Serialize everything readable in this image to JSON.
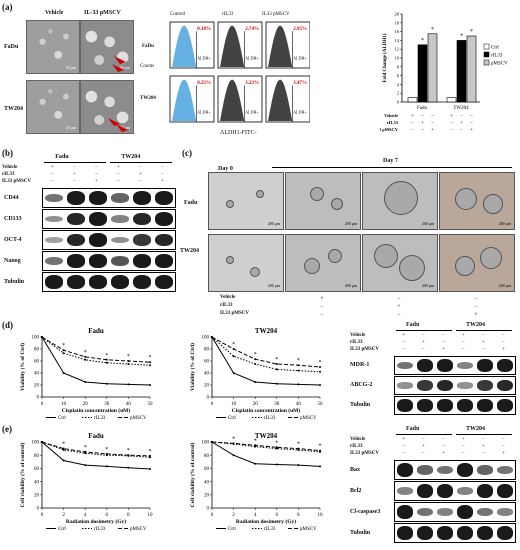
{
  "panel_a": {
    "label": "(a)",
    "micro_cols": [
      "Vehicle",
      "IL-33 pMSCV"
    ],
    "micro_rows": [
      "FaDu",
      "TW204"
    ],
    "scale": "50 μm",
    "flow_cols": [
      "Control",
      "rIL33",
      "IL33 pMSCV"
    ],
    "flow_rows": [
      "FaDu",
      "TW204"
    ],
    "flow_pct": [
      [
        "0.18%",
        "2.74%",
        "2.95%"
      ],
      [
        "0.25%",
        "3.23%",
        "3.47%"
      ]
    ],
    "flow_ylabel": "Counts",
    "flow_xlabel": "ALDH1-FITC-",
    "flow_gate": "ALDH+"
  },
  "panel_b": {
    "label": "(b)",
    "groups": [
      "Fadu",
      "TW204"
    ],
    "conditions": [
      "Vehicle",
      "rIL33",
      "IL33 pMSCV"
    ],
    "proteins": [
      "CD44",
      "CD133",
      "OCT-4",
      "Nanog",
      "Tubulin"
    ]
  },
  "panel_c": {
    "label": "(c)",
    "day0": "Day 0",
    "day7": "Day 7",
    "rows": [
      "Fadu",
      "TW204"
    ],
    "scale": "200 μm",
    "conditions": [
      "Vehicle",
      "rIL33",
      "IL33 pMSCV"
    ]
  },
  "panel_d": {
    "label": "(d)",
    "blot_groups": [
      "Fadu",
      "TW204"
    ],
    "blot_conditions": [
      "Vehicle",
      "rIL33",
      "IL33 pMSCV"
    ],
    "blot_proteins": [
      "MDR-1",
      "ABCG-2",
      "Tubulin"
    ]
  },
  "panel_e": {
    "label": "(e)",
    "blot_groups": [
      "Fadu",
      "TW204"
    ],
    "blot_conditions": [
      "Vehicle",
      "rIL33",
      "IL33 pMSCV"
    ],
    "blot_proteins": [
      "Bax",
      "Bcl2",
      "Cl-caspase3",
      "Tubulin"
    ]
  },
  "signs": {
    "plus": "+",
    "minus": "−"
  },
  "chart_data": [
    {
      "type": "bar",
      "title": "",
      "ylabel": "Fold Change (ALDH1)",
      "categories": [
        "Fadu",
        "TW204"
      ],
      "ylim": [
        0,
        20
      ],
      "yticks": [
        0,
        2,
        4,
        6,
        8,
        10,
        12,
        14,
        16,
        18,
        20
      ],
      "series": [
        {
          "name": "Ctrl",
          "values": [
            1.0,
            1.0
          ],
          "color": "#ffffff"
        },
        {
          "name": "rIL33",
          "values": [
            13.0,
            14.0
          ],
          "color": "#000000"
        },
        {
          "name": "pMSCV",
          "values": [
            15.5,
            15.0
          ],
          "color": "#c8c8c8"
        }
      ],
      "significance": "*",
      "conditions": [
        "Vehicle",
        "rIL33",
        "IL33 pMSCV"
      ]
    },
    {
      "type": "line",
      "title": "Fadu",
      "xlabel": "Cisplatin concentration (uM)",
      "ylabel": "Viability (% of Ctrl)",
      "x": [
        0,
        10,
        20,
        30,
        40,
        50
      ],
      "xlim": [
        0,
        50
      ],
      "ylim": [
        0,
        100
      ],
      "series": [
        {
          "name": "Ctrl",
          "values": [
            100,
            40,
            25,
            22,
            21,
            20
          ]
        },
        {
          "name": "rIL33",
          "values": [
            100,
            73,
            62,
            57,
            55,
            53
          ]
        },
        {
          "name": "pMSCV",
          "values": [
            100,
            78,
            67,
            62,
            60,
            58
          ]
        }
      ],
      "significance": "*"
    },
    {
      "type": "line",
      "title": "TW204",
      "xlabel": "Cisplatin concentration (uM)",
      "ylabel": "Viability (% of Ctrl)",
      "x": [
        0,
        10,
        20,
        30,
        40,
        50
      ],
      "xlim": [
        0,
        50
      ],
      "ylim": [
        0,
        100
      ],
      "series": [
        {
          "name": "Ctrl",
          "values": [
            100,
            40,
            25,
            22,
            21,
            20
          ]
        },
        {
          "name": "rIL33",
          "values": [
            100,
            68,
            55,
            46,
            44,
            42
          ]
        },
        {
          "name": "pMSCV",
          "values": [
            100,
            80,
            63,
            55,
            53,
            50
          ]
        }
      ],
      "significance": "*"
    },
    {
      "type": "line",
      "title": "Fadu",
      "xlabel": "Radiation dosimetry (Gy)",
      "ylabel": "Cell viability (% of control)",
      "x": [
        0,
        2,
        4,
        6,
        8,
        10
      ],
      "xlim": [
        0,
        10
      ],
      "ylim": [
        0,
        100
      ],
      "series": [
        {
          "name": "Ctrl",
          "values": [
            100,
            72,
            65,
            63,
            61,
            59
          ]
        },
        {
          "name": "rIL33",
          "values": [
            100,
            88,
            83,
            80,
            79,
            77
          ]
        },
        {
          "name": "pMSCV",
          "values": [
            100,
            90,
            85,
            82,
            80,
            79
          ]
        }
      ],
      "significance": "*"
    },
    {
      "type": "line",
      "title": "TW204",
      "xlabel": "Radiation dosimetry (Gy)",
      "ylabel": "Cell viability (% of control)",
      "x": [
        0,
        2,
        4,
        6,
        8,
        10
      ],
      "xlim": [
        0,
        10
      ],
      "ylim": [
        0,
        100
      ],
      "series": [
        {
          "name": "Ctrl",
          "values": [
            100,
            80,
            67,
            66,
            65,
            63
          ]
        },
        {
          "name": "rIL33",
          "values": [
            100,
            97,
            93,
            90,
            88,
            85
          ]
        },
        {
          "name": "pMSCV",
          "values": [
            100,
            98,
            95,
            92,
            90,
            87
          ]
        }
      ],
      "significance": "*"
    }
  ]
}
